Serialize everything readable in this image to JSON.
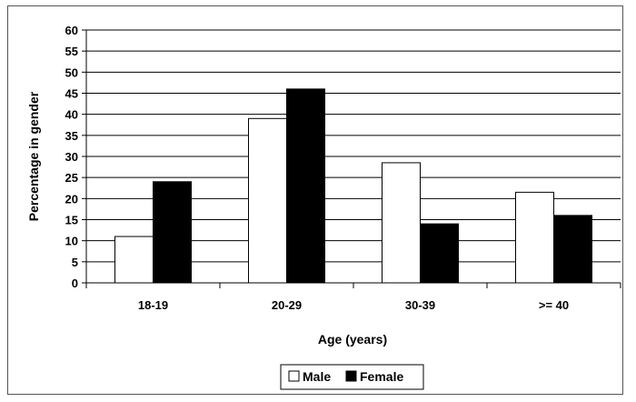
{
  "chart_data": {
    "type": "bar",
    "categories": [
      "18-19",
      "20-29",
      "30-39",
      ">= 40"
    ],
    "series": [
      {
        "name": "Male",
        "values": [
          11,
          39,
          28.5,
          21.5
        ],
        "color": "#ffffff"
      },
      {
        "name": "Female",
        "values": [
          24,
          46,
          14,
          16
        ],
        "color": "#000000"
      }
    ],
    "xlabel": "Age (years)",
    "ylabel": "Percentage in gender",
    "ylim": [
      0,
      60
    ],
    "yticks": [
      0,
      5,
      10,
      15,
      20,
      25,
      30,
      35,
      40,
      45,
      50,
      55,
      60
    ],
    "grid": true,
    "legend_position": "bottom"
  }
}
